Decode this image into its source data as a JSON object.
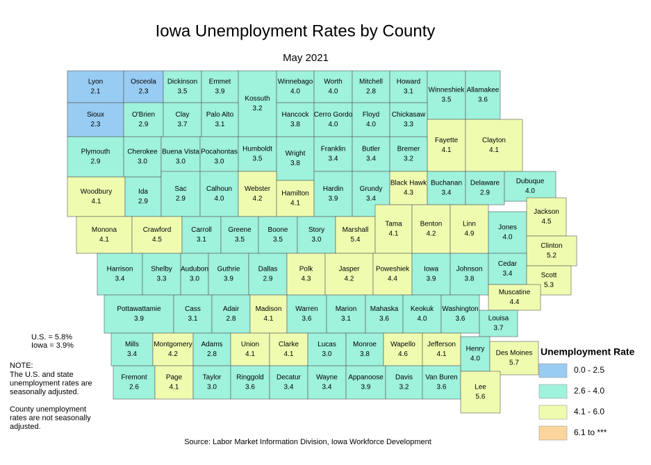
{
  "title": "Iowa Unemployment Rates by County",
  "subtitle": "May 2021",
  "map": {
    "counties": [
      "Lyon",
      "Osceola",
      "Dickinson",
      "Emmet",
      "Kossuth",
      "Winnebago",
      "Worth",
      "Mitchell",
      "Howard",
      "Winneshiek",
      "Allamakee",
      "Sioux",
      "O'Brien",
      "Clay",
      "Palo Alto",
      "Hancock",
      "Cerro Gordo",
      "Floyd",
      "Chickasaw",
      "Fayette",
      "Clayton",
      "Plymouth",
      "Cherokee",
      "Buena Vista",
      "Pocahontas",
      "Humboldt",
      "Wright",
      "Franklin",
      "Butler",
      "Bremer",
      "Woodbury",
      "Ida",
      "Sac",
      "Calhoun",
      "Webster",
      "Hamilton",
      "Hardin",
      "Grundy",
      "Black Hawk",
      "Buchanan",
      "Delaware",
      "Dubuque",
      "Monona",
      "Crawford",
      "Carroll",
      "Greene",
      "Boone",
      "Story",
      "Marshall",
      "Tama",
      "Benton",
      "Linn",
      "Jones",
      "Jackson",
      "Clinton",
      "Harrison",
      "Shelby",
      "Audubon",
      "Guthrie",
      "Dallas",
      "Polk",
      "Jasper",
      "Poweshiek",
      "Iowa",
      "Johnson",
      "Cedar",
      "Scott",
      "Muscatine",
      "Pottawattamie",
      "Cass",
      "Adair",
      "Madison",
      "Warren",
      "Marion",
      "Mahaska",
      "Keokuk",
      "Washington",
      "Louisa",
      "Mills",
      "Montgomery",
      "Adams",
      "Union",
      "Clarke",
      "Lucas",
      "Monroe",
      "Wapello",
      "Jefferson",
      "Henry",
      "Des Moines",
      "Fremont",
      "Page",
      "Taylor",
      "Ringgold",
      "Decatur",
      "Wayne",
      "Appanoose",
      "Davis",
      "Van Buren",
      "Lee"
    ],
    "values": [
      2.1,
      2.3,
      3.5,
      3.9,
      3.2,
      4.0,
      4.0,
      2.8,
      3.1,
      3.5,
      3.6,
      2.3,
      2.9,
      3.7,
      3.1,
      3.8,
      4.0,
      4.0,
      3.3,
      4.1,
      4.1,
      2.9,
      3.0,
      3.0,
      3.0,
      3.5,
      3.8,
      3.4,
      3.4,
      3.2,
      4.1,
      2.9,
      2.9,
      4.0,
      4.2,
      4.1,
      3.9,
      3.4,
      4.3,
      3.4,
      2.9,
      4.0,
      4.1,
      4.5,
      3.1,
      3.5,
      3.5,
      3.0,
      5.4,
      4.1,
      4.2,
      4.9,
      4.0,
      4.5,
      5.2,
      3.4,
      3.3,
      3.0,
      3.9,
      2.9,
      4.3,
      4.2,
      4.4,
      3.9,
      3.8,
      3.4,
      5.3,
      4.4,
      3.9,
      3.1,
      2.8,
      4.1,
      3.6,
      3.1,
      3.6,
      4.0,
      3.6,
      3.7,
      3.4,
      4.2,
      2.8,
      4.1,
      4.1,
      3.0,
      3.8,
      4.6,
      4.1,
      4.0,
      5.7,
      2.6,
      4.1,
      3.0,
      3.6,
      3.4,
      3.4,
      3.9,
      3.2,
      3.6,
      5.6
    ],
    "value_labels": [
      "2.1",
      "2.3",
      "3.5",
      "3.9",
      "3.2",
      "4.0",
      "4.0",
      "2.8",
      "3.1",
      "3.5",
      "3.6",
      "2.3",
      "2.9",
      "3.7",
      "3.1",
      "3.8",
      "4.0",
      "4.0",
      "3.3",
      "4.1",
      "4.1",
      "2.9",
      "3.0",
      "3.0",
      "3.0",
      "3.5",
      "3.8",
      "3.4",
      "3.4",
      "3.2",
      "4.1",
      "2.9",
      "2.9",
      "4.0",
      "4.2",
      "4.1",
      "3.9",
      "3.4",
      "4.3",
      "3.4",
      "2.9",
      "4.0",
      "4.1",
      "4.5",
      "3.1",
      "3.5",
      "3.5",
      "3.0",
      "5.4",
      "4.1",
      "4.2",
      "4.9",
      "4.0",
      "4.5",
      "5.2",
      "3.4",
      "3.3",
      "3.0",
      "3.9",
      "2.9",
      "4.3",
      "4.2",
      "4.4",
      "3.9",
      "3.8",
      "3.4",
      "5.3",
      "4.4",
      "3.9",
      "3.1",
      "2.8",
      "4.1",
      "3.6",
      "3.1",
      "3.6",
      "4.0",
      "3.6",
      "3.7",
      "3.4",
      "4.2",
      "2.8",
      "4.1",
      "4.1",
      "3.0",
      "3.8",
      "4.6",
      "4.1",
      "4.0",
      "5.7",
      "2.6",
      "4.1",
      "3.0",
      "3.6",
      "3.4",
      "3.4",
      "3.9",
      "3.2",
      "3.6",
      "5.6"
    ]
  },
  "legend": {
    "title": "Unemployment Rate",
    "items": [
      {
        "label": "0.0 - 2.5",
        "color": "#99ccf2"
      },
      {
        "label": "2.6 - 4.0",
        "color": "#9ff2dc"
      },
      {
        "label": "4.1 - 6.0",
        "color": "#effcb0"
      },
      {
        "label": "6.1 to ***",
        "color": "#fcd59c"
      }
    ]
  },
  "stats": [
    "U.S.  = 5.8%",
    "Iowa = 3.9%"
  ],
  "note": {
    "heading": "NOTE:",
    "paragraphs": [
      [
        "The U.S. and state",
        "unemployment rates are",
        "seasonally adjusted."
      ],
      [
        "County unemployment",
        "rates are not seasonally",
        "adjusted."
      ]
    ]
  },
  "source": "Source: Labor Market Information Division, Iowa Workforce Development"
}
